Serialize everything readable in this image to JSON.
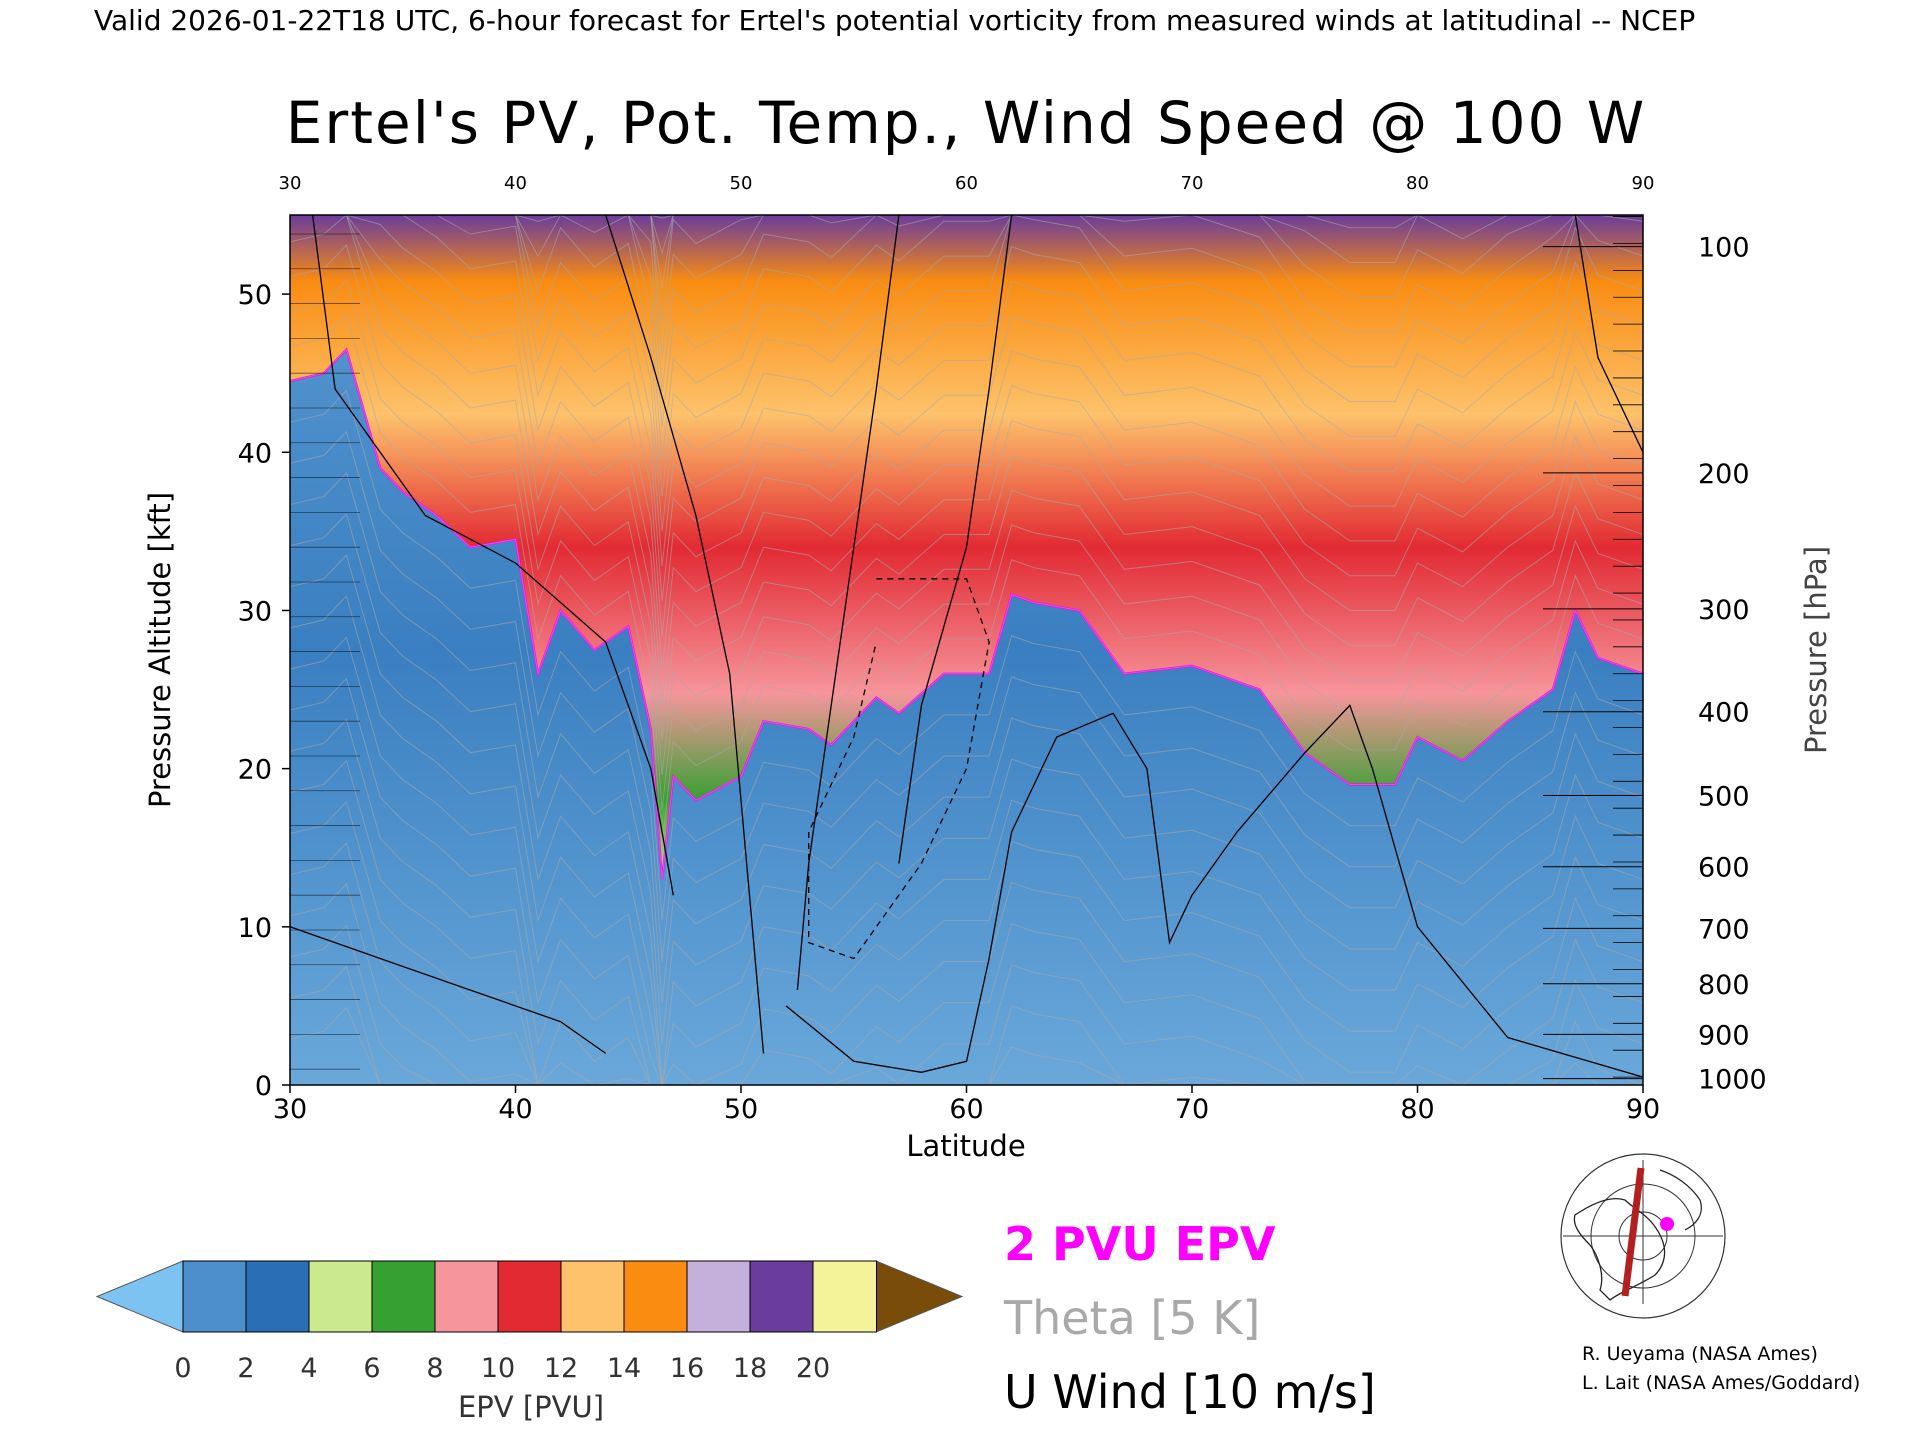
{
  "header": "Valid 2026-01-22T18 UTC, 6-hour forecast for Ertel's potential vorticity from measured winds at latitudinal -- NCEP",
  "chart_data": {
    "type": "heatmap",
    "title": "Ertel's PV, Pot. Temp., Wind Speed @ 100 W",
    "xlabel": "Latitude",
    "ylabel": "Pressure Altitude [kft]",
    "ylabel_right": "Pressure [hPa]",
    "xlim": [
      30,
      90
    ],
    "ylim": [
      0,
      55
    ],
    "x_ticks": [
      30,
      40,
      50,
      60,
      70,
      80,
      90
    ],
    "y_ticks": [
      0,
      10,
      20,
      30,
      40,
      50
    ],
    "pressure_ticks": [
      {
        "hPa": "100",
        "kft": 53
      },
      {
        "hPa": "200",
        "kft": 38.7
      },
      {
        "hPa": "300",
        "kft": 30.1
      },
      {
        "hPa": "400",
        "kft": 23.6
      },
      {
        "hPa": "500",
        "kft": 18.3
      },
      {
        "hPa": "600",
        "kft": 13.8
      },
      {
        "hPa": "700",
        "kft": 9.9
      },
      {
        "hPa": "800",
        "kft": 6.4
      },
      {
        "hPa": "900",
        "kft": 3.2
      },
      {
        "hPa": "1000",
        "kft": 0.4
      }
    ],
    "epv_2pvu_kft": [
      {
        "lat": 30,
        "kft": 44.5
      },
      {
        "lat": 31.5,
        "kft": 45
      },
      {
        "lat": 32.5,
        "kft": 46.5
      },
      {
        "lat": 34,
        "kft": 39
      },
      {
        "lat": 35,
        "kft": 37.5
      },
      {
        "lat": 36.5,
        "kft": 36
      },
      {
        "lat": 38,
        "kft": 34
      },
      {
        "lat": 40,
        "kft": 34.5
      },
      {
        "lat": 41,
        "kft": 26
      },
      {
        "lat": 42,
        "kft": 30
      },
      {
        "lat": 43.5,
        "kft": 27.5
      },
      {
        "lat": 45,
        "kft": 29
      },
      {
        "lat": 46,
        "kft": 22.5
      },
      {
        "lat": 46.5,
        "kft": 13
      },
      {
        "lat": 47,
        "kft": 19.5
      },
      {
        "lat": 48,
        "kft": 18
      },
      {
        "lat": 50,
        "kft": 19.5
      },
      {
        "lat": 51,
        "kft": 23
      },
      {
        "lat": 53,
        "kft": 22.5
      },
      {
        "lat": 54,
        "kft": 21.5
      },
      {
        "lat": 56,
        "kft": 24.5
      },
      {
        "lat": 57,
        "kft": 23.5
      },
      {
        "lat": 59,
        "kft": 26
      },
      {
        "lat": 61,
        "kft": 26
      },
      {
        "lat": 62,
        "kft": 31
      },
      {
        "lat": 63,
        "kft": 30.5
      },
      {
        "lat": 65,
        "kft": 30
      },
      {
        "lat": 67,
        "kft": 26
      },
      {
        "lat": 70,
        "kft": 26.5
      },
      {
        "lat": 73,
        "kft": 25
      },
      {
        "lat": 75,
        "kft": 21
      },
      {
        "lat": 77,
        "kft": 19
      },
      {
        "lat": 79,
        "kft": 19
      },
      {
        "lat": 80,
        "kft": 22
      },
      {
        "lat": 82,
        "kft": 20.5
      },
      {
        "lat": 84,
        "kft": 23
      },
      {
        "lat": 86,
        "kft": 25
      },
      {
        "lat": 87,
        "kft": 30
      },
      {
        "lat": 88,
        "kft": 27
      },
      {
        "lat": 90,
        "kft": 26
      }
    ],
    "colorbar": {
      "label": "EPV [PVU]",
      "ticks": [
        "0",
        "2",
        "4",
        "6",
        "8",
        "10",
        "12",
        "14",
        "16",
        "18",
        "20"
      ],
      "colors": [
        "#4d8fcc",
        "#2a6fb5",
        "#cbe98d",
        "#37a032",
        "#f6959b",
        "#e22a33",
        "#fdc26b",
        "#f98c11",
        "#c4b0da",
        "#6a3c9c",
        "#f5f39a"
      ],
      "under_color": "#7cc3f2",
      "over_color": "#7a4c0a"
    },
    "legend": [
      {
        "label": "2 PVU EPV",
        "color": "#ff00ff"
      },
      {
        "label": "Theta [5 K]",
        "color": "#a9a9a9"
      },
      {
        "label": "U Wind [10 m/s]",
        "color": "#000000"
      }
    ]
  },
  "credits": [
    "R. Ueyama (NASA Ames)",
    "L. Lait (NASA Ames/Goddard)"
  ]
}
